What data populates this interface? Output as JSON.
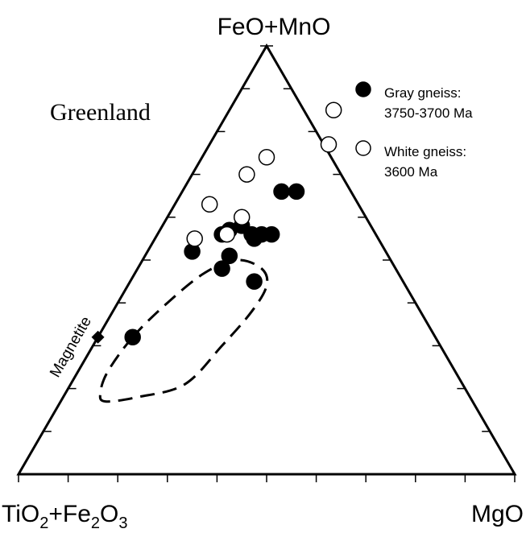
{
  "chart_data": {
    "type": "scatter",
    "subtype": "ternary",
    "vertices": {
      "top": "FeO+MnO",
      "left": {
        "base1": "TiO",
        "sub1": "2",
        "plus": "+Fe",
        "sub2": "2",
        "base2": "O",
        "sub3": "3"
      },
      "right": "MgO"
    },
    "region_label": "Greenland",
    "series": [
      {
        "name_line1": "Gray gneiss:",
        "name_line2": "3750-3700 Ma",
        "marker": "filled",
        "color": "#000000",
        "points": [
          {
            "top": 0.66,
            "right": 0.2
          },
          {
            "top": 0.66,
            "right": 0.23
          },
          {
            "top": 0.58,
            "right": 0.16
          },
          {
            "top": 0.57,
            "right": 0.14
          },
          {
            "top": 0.56,
            "right": 0.13
          },
          {
            "top": 0.56,
            "right": 0.19
          },
          {
            "top": 0.56,
            "right": 0.21
          },
          {
            "top": 0.55,
            "right": 0.2
          },
          {
            "top": 0.56,
            "right": 0.23
          },
          {
            "top": 0.52,
            "right": 0.09
          },
          {
            "top": 0.51,
            "right": 0.17
          },
          {
            "top": 0.48,
            "right": 0.17
          },
          {
            "top": 0.45,
            "right": 0.25
          },
          {
            "top": 0.32,
            "right": 0.07
          }
        ]
      },
      {
        "name_line1": "White gneiss:",
        "name_line2": "3600 Ma",
        "marker": "open",
        "color": "#000000",
        "points": [
          {
            "top": 0.85,
            "right": 0.21
          },
          {
            "top": 0.77,
            "right": 0.24
          },
          {
            "top": 0.74,
            "right": 0.13
          },
          {
            "top": 0.7,
            "right": 0.11
          },
          {
            "top": 0.63,
            "right": 0.07
          },
          {
            "top": 0.6,
            "right": 0.15
          },
          {
            "top": 0.55,
            "right": 0.08
          },
          {
            "top": 0.56,
            "right": 0.14
          }
        ]
      }
    ],
    "reference_point": {
      "label": "Magnetite",
      "top": 0.32,
      "right": 0.0
    },
    "field_outline": {
      "style": "dashed",
      "points": [
        {
          "top": 0.32,
          "right": 0.07
        },
        {
          "top": 0.4,
          "right": 0.1
        },
        {
          "top": 0.47,
          "right": 0.14
        },
        {
          "top": 0.5,
          "right": 0.19
        },
        {
          "top": 0.48,
          "right": 0.25
        },
        {
          "top": 0.44,
          "right": 0.28
        },
        {
          "top": 0.38,
          "right": 0.28
        },
        {
          "top": 0.3,
          "right": 0.26
        },
        {
          "top": 0.21,
          "right": 0.23
        },
        {
          "top": 0.18,
          "right": 0.15
        },
        {
          "top": 0.17,
          "right": 0.09
        },
        {
          "top": 0.19,
          "right": 0.07
        },
        {
          "top": 0.24,
          "right": 0.06
        }
      ]
    },
    "tick_divisions": 10
  }
}
